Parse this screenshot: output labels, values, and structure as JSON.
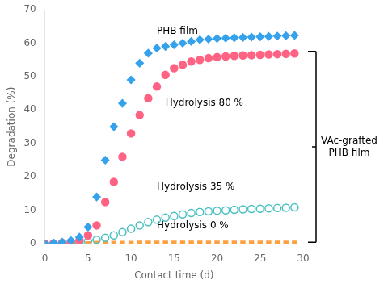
{
  "chart_data": {
    "type": "scatter",
    "xlabel": "Contact time (d)",
    "ylabel": "Degradation (%)",
    "xlim": [
      0,
      30
    ],
    "ylim": [
      0,
      70
    ],
    "xticks": [
      0,
      5,
      10,
      15,
      20,
      25,
      30
    ],
    "yticks": [
      0,
      10,
      20,
      30,
      40,
      50,
      60,
      70
    ],
    "grid": false,
    "x": [
      0,
      1,
      2,
      3,
      4,
      5,
      6,
      7,
      8,
      9,
      10,
      11,
      12,
      13,
      14,
      15,
      16,
      17,
      18,
      19,
      20,
      21,
      22,
      23,
      24,
      25,
      26,
      27,
      28,
      29
    ],
    "series": [
      {
        "marker": "diamond",
        "values": [
          0,
          0.2,
          0.5,
          1.0,
          2.0,
          5.0,
          14.0,
          25.0,
          35.0,
          42.0,
          49.0,
          54.0,
          57.0,
          58.5,
          59.0,
          59.5,
          60.0,
          60.5,
          61.0,
          61.2,
          61.4,
          61.5,
          61.6,
          61.7,
          61.8,
          61.9,
          62.0,
          62.1,
          62.2,
          62.3
        ]
      },
      {
        "marker": "circle",
        "values": [
          0,
          0.1,
          0.3,
          0.5,
          1.0,
          2.5,
          5.5,
          12.5,
          18.5,
          26.0,
          33.0,
          38.5,
          43.5,
          47.0,
          50.5,
          52.5,
          53.5,
          54.5,
          55.0,
          55.5,
          55.8,
          56.0,
          56.2,
          56.3,
          56.4,
          56.5,
          56.6,
          56.7,
          56.8,
          56.9
        ]
      },
      {
        "marker": "circle_open",
        "values": [
          0,
          0.1,
          0.2,
          0.3,
          0.5,
          0.8,
          1.2,
          1.8,
          2.5,
          3.5,
          4.5,
          5.5,
          6.5,
          7.2,
          7.8,
          8.3,
          8.8,
          9.2,
          9.5,
          9.7,
          9.9,
          10.0,
          10.2,
          10.3,
          10.4,
          10.5,
          10.6,
          10.7,
          10.8,
          10.9
        ]
      },
      {
        "marker": "square",
        "values": [
          0,
          0,
          0,
          0,
          0,
          0,
          0.1,
          0.1,
          0.1,
          0.1,
          0.1,
          0.2,
          0.2,
          0.2,
          0.2,
          0.2,
          0.2,
          0.2,
          0.2,
          0.2,
          0.2,
          0.2,
          0.2,
          0.2,
          0.2,
          0.2,
          0.2,
          0.2,
          0.2,
          0.2
        ]
      }
    ],
    "annotations": [
      {
        "text": "PHB film",
        "x": 13,
        "y": 63.5
      },
      {
        "text": "Hydrolysis 80 %",
        "x": 14,
        "y": 42
      },
      {
        "text": "Hydrolysis 35 %",
        "x": 13,
        "y": 17
      },
      {
        "text": "Hydrolysis 0 %",
        "x": 13,
        "y": 5.5
      }
    ],
    "bracket": {
      "text": "VAc-grafted\nPHB film",
      "y": [
        0.5,
        57.5
      ]
    }
  }
}
